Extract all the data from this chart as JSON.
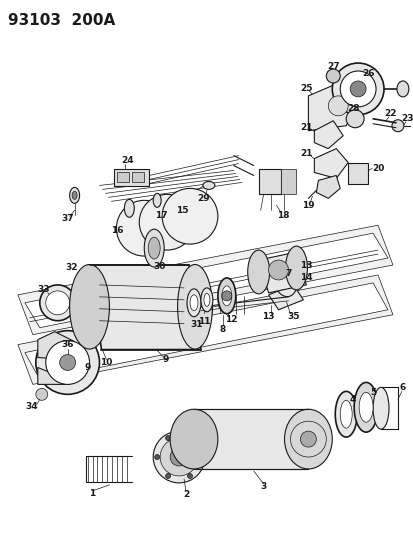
{
  "title": "93103  200A",
  "bg_color": "#ffffff",
  "line_color": "#1a1a1a",
  "title_fontsize": 11,
  "label_fontsize": 6.5,
  "fig_width": 4.14,
  "fig_height": 5.33,
  "dpi": 100
}
